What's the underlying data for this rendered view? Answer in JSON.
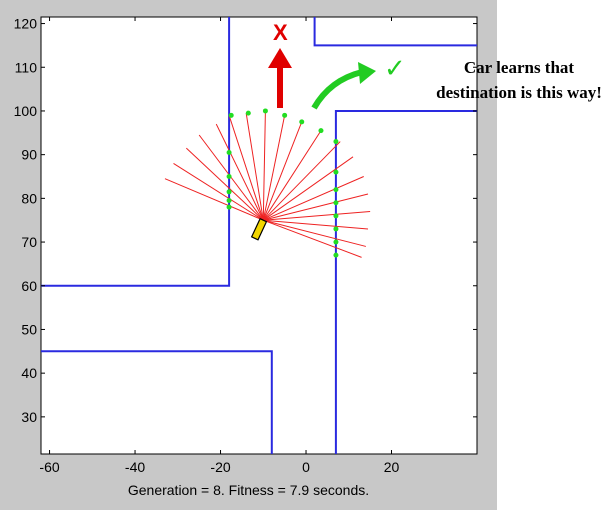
{
  "chart_data": {
    "type": "scatter",
    "title": "",
    "xlabel": "",
    "ylabel": "",
    "xlim": [
      -62,
      40
    ],
    "ylim": [
      21.5,
      121.5
    ],
    "xticks": [
      -60,
      -40,
      -20,
      0,
      20
    ],
    "yticks": [
      30,
      40,
      50,
      60,
      70,
      80,
      90,
      100,
      110,
      120
    ],
    "caption": "Generation = 8. Fitness = 7.9 seconds.",
    "walls": [
      {
        "x": [
          -18,
          -18,
          -62
        ],
        "y": [
          121.5,
          60,
          60
        ]
      },
      {
        "x": [
          2,
          2,
          40
        ],
        "y": [
          121.5,
          115,
          115
        ]
      },
      {
        "x": [
          7,
          7,
          40
        ],
        "y": [
          21.5,
          100,
          100
        ]
      },
      {
        "x": [
          -62,
          -8,
          -8
        ],
        "y": [
          45,
          45,
          21.5
        ]
      }
    ],
    "wall_color": "#2a2ae0",
    "car": {
      "x": -10,
      "y": 75,
      "heading_deg": 245
    },
    "sensor_origin": {
      "x": -10,
      "y": 75
    },
    "sensor_ends": [
      {
        "x": -33,
        "y": 84.5
      },
      {
        "x": -31,
        "y": 88
      },
      {
        "x": -28,
        "y": 91.5
      },
      {
        "x": -25,
        "y": 94.5
      },
      {
        "x": -21,
        "y": 97
      },
      {
        "x": -18,
        "y": 99
      },
      {
        "x": -14,
        "y": 99.5
      },
      {
        "x": -9.5,
        "y": 100
      },
      {
        "x": -5,
        "y": 99
      },
      {
        "x": -1,
        "y": 97.5
      },
      {
        "x": 3.5,
        "y": 95.5
      },
      {
        "x": 8,
        "y": 93
      },
      {
        "x": 11,
        "y": 89.5
      },
      {
        "x": 13.5,
        "y": 85
      },
      {
        "x": 14.5,
        "y": 81
      },
      {
        "x": 15,
        "y": 77
      },
      {
        "x": 14.5,
        "y": 73
      },
      {
        "x": 14,
        "y": 69
      },
      {
        "x": 13,
        "y": 66.5
      }
    ],
    "sensor_hits": [
      {
        "x": -17.5,
        "y": 99
      },
      {
        "x": -13.5,
        "y": 99.5
      },
      {
        "x": -9.5,
        "y": 100
      },
      {
        "x": -5,
        "y": 99
      },
      {
        "x": -1,
        "y": 97.5
      },
      {
        "x": 3.5,
        "y": 95.5
      },
      {
        "x": -18,
        "y": 90.5
      },
      {
        "x": -18,
        "y": 85
      },
      {
        "x": -18,
        "y": 81.5
      },
      {
        "x": -18,
        "y": 79.5
      },
      {
        "x": -18,
        "y": 78
      },
      {
        "x": 7,
        "y": 93
      },
      {
        "x": 7,
        "y": 86
      },
      {
        "x": 7,
        "y": 82
      },
      {
        "x": 7,
        "y": 79
      },
      {
        "x": 7,
        "y": 76
      },
      {
        "x": 7,
        "y": 73
      },
      {
        "x": 7,
        "y": 70
      },
      {
        "x": 7,
        "y": 67
      }
    ],
    "sensor_line_color": "#ee2222",
    "hit_color": "#22dd22",
    "car_color": "#f2d600"
  },
  "annotation": {
    "deadend_label": "X",
    "note_line1": "Car learns that",
    "note_line2": "destination is this way!",
    "check_glyph": "✓",
    "red_arrow_color": "#e00000",
    "green_arrow_color": "#22cc22"
  }
}
